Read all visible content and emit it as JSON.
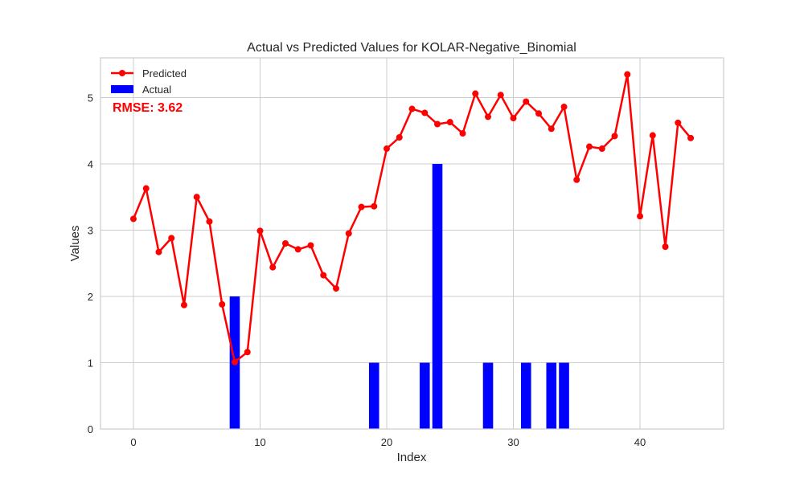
{
  "chart_data": {
    "type": "bar+line",
    "title": "Actual vs Predicted Values for KOLAR-Negative_Binomial",
    "xlabel": "Index",
    "ylabel": "Values",
    "xlim": [
      -2.6,
      46.6
    ],
    "ylim": [
      0,
      5.6
    ],
    "xticks": [
      0,
      10,
      20,
      30,
      40
    ],
    "yticks": [
      0,
      1,
      2,
      3,
      4,
      5
    ],
    "grid": true,
    "legend_position": "top-left",
    "annotation": "RMSE: 3.62",
    "annotation_color": "#ff0000",
    "series": [
      {
        "name": "Predicted",
        "type": "line",
        "color": "#ff0000",
        "x": [
          0,
          1,
          2,
          3,
          4,
          5,
          6,
          7,
          8,
          9,
          10,
          11,
          12,
          13,
          14,
          15,
          16,
          17,
          18,
          19,
          20,
          21,
          22,
          23,
          24,
          25,
          26,
          27,
          28,
          29,
          30,
          31,
          32,
          33,
          34,
          35,
          36,
          37,
          38,
          39,
          40,
          41,
          42,
          43,
          44
        ],
        "values": [
          3.17,
          3.63,
          2.67,
          2.88,
          1.87,
          3.5,
          3.13,
          1.88,
          1.01,
          1.16,
          2.99,
          2.44,
          2.8,
          2.71,
          2.77,
          2.32,
          2.12,
          2.95,
          3.35,
          3.36,
          4.23,
          4.4,
          4.83,
          4.77,
          4.6,
          4.63,
          4.46,
          5.06,
          4.71,
          5.04,
          4.69,
          4.94,
          4.76,
          4.53,
          4.86,
          3.76,
          4.26,
          4.23,
          4.42,
          5.35,
          3.21,
          4.43,
          2.75,
          4.62,
          4.39
        ]
      },
      {
        "name": "Actual",
        "type": "bar",
        "color": "#0000ff",
        "x": [
          0,
          1,
          2,
          3,
          4,
          5,
          6,
          7,
          8,
          9,
          10,
          11,
          12,
          13,
          14,
          15,
          16,
          17,
          18,
          19,
          20,
          21,
          22,
          23,
          24,
          25,
          26,
          27,
          28,
          29,
          30,
          31,
          32,
          33,
          34,
          35,
          36,
          37,
          38,
          39,
          40,
          41,
          42,
          43,
          44
        ],
        "values": [
          0,
          0,
          0,
          0,
          0,
          0,
          0,
          0,
          2,
          0,
          0,
          0,
          0,
          0,
          0,
          0,
          0,
          0,
          0,
          1,
          0,
          0,
          0,
          1,
          4,
          0,
          0,
          0,
          1,
          0,
          0,
          1,
          0,
          1,
          1,
          0,
          0,
          0,
          0,
          0,
          0,
          0,
          0,
          0,
          0
        ]
      }
    ]
  }
}
